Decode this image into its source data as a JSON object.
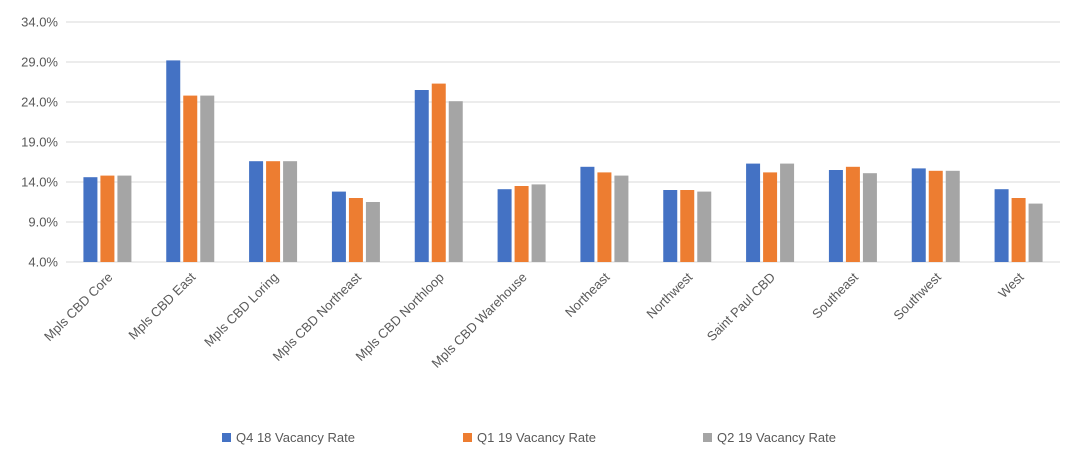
{
  "chart_data": {
    "type": "bar",
    "title": "",
    "xlabel": "",
    "ylabel": "",
    "ylim": [
      4.0,
      34.0
    ],
    "yticks": [
      4.0,
      9.0,
      14.0,
      19.0,
      24.0,
      29.0,
      34.0
    ],
    "ytick_labels": [
      "4.0%",
      "9.0%",
      "14.0%",
      "19.0%",
      "24.0%",
      "29.0%",
      "34.0%"
    ],
    "grid": true,
    "legend_position": "bottom",
    "categories": [
      "Mpls CBD Core",
      "Mpls CBD East",
      "Mpls CBD Loring",
      "Mpls CBD Northeast",
      "Mpls CBD Northloop",
      "Mpls CBD Warehouse",
      "Northeast",
      "Northwest",
      "Saint Paul CBD",
      "Southeast",
      "Southwest",
      "West"
    ],
    "series": [
      {
        "name": "Q4 18 Vacancy Rate",
        "color": "#4472c4",
        "values": [
          14.6,
          29.2,
          16.6,
          12.8,
          25.5,
          13.1,
          15.9,
          13.0,
          16.3,
          15.5,
          15.7,
          13.1
        ]
      },
      {
        "name": "Q1 19 Vacancy Rate",
        "color": "#ed7d31",
        "values": [
          14.8,
          24.8,
          16.6,
          12.0,
          26.3,
          13.5,
          15.2,
          13.0,
          15.2,
          15.9,
          15.4,
          12.0
        ]
      },
      {
        "name": "Q2 19 Vacancy Rate",
        "color": "#a5a5a5",
        "values": [
          14.8,
          24.8,
          16.6,
          11.5,
          24.1,
          13.7,
          14.8,
          12.8,
          16.3,
          15.1,
          15.4,
          11.3
        ]
      }
    ]
  }
}
